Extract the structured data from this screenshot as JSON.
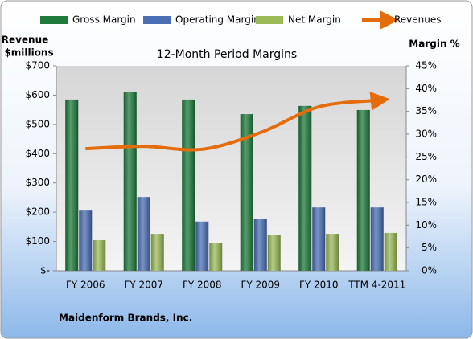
{
  "chart_data": {
    "type": "bar",
    "title": "12-Month Period Margins",
    "y_label": [
      "Revenue",
      "$millions"
    ],
    "y2_label": "Margin %",
    "footer": "Maidenform Brands, Inc.",
    "categories": [
      "FY 2006",
      "FY 2007",
      "FY 2008",
      "FY 2009",
      "FY 2010",
      "TTM 4-2011"
    ],
    "series": [
      {
        "name": "Gross Margin",
        "color": "#1e7b3c",
        "axis": "y2",
        "values": [
          37.6,
          39.2,
          37.6,
          34.4,
          36.2,
          35.3
        ]
      },
      {
        "name": "Operating Margin",
        "color": "#4a6fb5",
        "axis": "y2",
        "values": [
          13.2,
          16.2,
          10.8,
          11.3,
          13.9,
          13.9
        ]
      },
      {
        "name": "Net Margin",
        "color": "#9bbb59",
        "axis": "y2",
        "values": [
          6.7,
          8.1,
          6.0,
          7.9,
          8.1,
          8.3
        ]
      },
      {
        "name": "Revenues",
        "color": "#e46c0a",
        "axis": "y",
        "type": "line",
        "values": [
          417,
          425,
          415,
          472,
          560,
          582
        ]
      }
    ],
    "ylim": [
      0,
      700
    ],
    "yticks": [
      {
        "value": 0,
        "label": "$-"
      },
      {
        "value": 100,
        "label": "$100"
      },
      {
        "value": 200,
        "label": "$200"
      },
      {
        "value": 300,
        "label": "$300"
      },
      {
        "value": 400,
        "label": "$400"
      },
      {
        "value": 500,
        "label": "$500"
      },
      {
        "value": 600,
        "label": "$600"
      },
      {
        "value": 700,
        "label": "$700"
      }
    ],
    "y2lim": [
      0,
      45
    ],
    "y2ticks": [
      {
        "value": 0,
        "label": "0%"
      },
      {
        "value": 5,
        "label": "5%"
      },
      {
        "value": 10,
        "label": "10%"
      },
      {
        "value": 15,
        "label": "15%"
      },
      {
        "value": 20,
        "label": "20%"
      },
      {
        "value": 25,
        "label": "25%"
      },
      {
        "value": 30,
        "label": "30%"
      },
      {
        "value": 35,
        "label": "35%"
      },
      {
        "value": 40,
        "label": "40%"
      },
      {
        "value": 45,
        "label": "45%"
      }
    ],
    "grid": false
  }
}
